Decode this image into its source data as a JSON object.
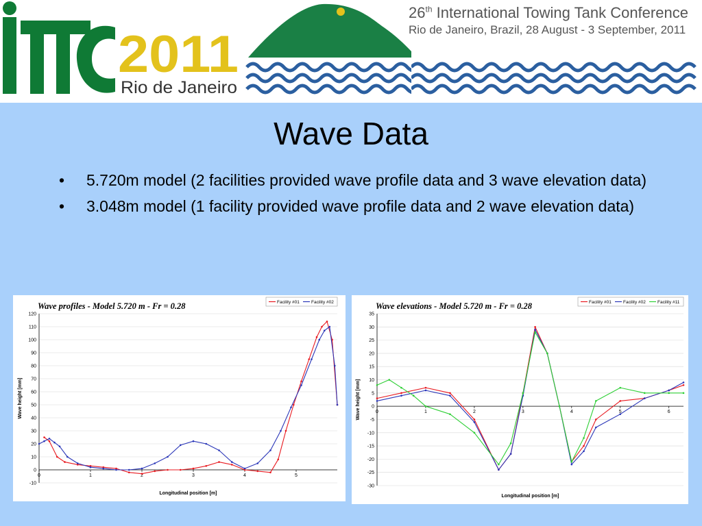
{
  "banner": {
    "logo_text": "ITTC",
    "logo_year": "2011",
    "logo_city": "Rio de Janeiro",
    "conference_ordinal": "26",
    "conference_ordinal_suffix": "th",
    "conference_name": " International Towing Tank Conference",
    "conference_details": "Rio de Janeiro, Brazil, 28 August - 3 September, 2011"
  },
  "slide": {
    "title": "Wave Data",
    "bullet_marker": "•",
    "bullets": [
      "5.720m model (2 facilities provided wave profile data and 3 wave elevation data)",
      "3.048m model (1 facility provided wave profile data and 2 wave elevation data)"
    ]
  },
  "chart_data": [
    {
      "type": "line",
      "title": "Wave profiles - Model 5.720 m - Fr = 0.28",
      "xlabel": "Longitudinal position [m]",
      "ylabel": "Wave height [mm]",
      "xlim": [
        0,
        5.8
      ],
      "ylim": [
        -10,
        120
      ],
      "x_ticks": [
        0,
        1,
        2,
        3,
        4,
        5
      ],
      "y_ticks": [
        -10,
        0,
        10,
        20,
        30,
        40,
        50,
        60,
        70,
        80,
        90,
        100,
        110,
        120
      ],
      "grid": "horizontal",
      "legend_position": "top-right",
      "series": [
        {
          "name": "Facility #01",
          "color": "#e8191f",
          "x": [
            0.1,
            0.2,
            0.35,
            0.5,
            0.75,
            1.0,
            1.25,
            1.5,
            1.75,
            2.0,
            2.25,
            2.5,
            2.75,
            3.0,
            3.25,
            3.5,
            3.75,
            4.0,
            4.25,
            4.5,
            4.65,
            4.8,
            4.95,
            5.1,
            5.25,
            5.4,
            5.5,
            5.6,
            5.7,
            5.8
          ],
          "y": [
            25,
            22,
            10,
            6,
            4,
            3,
            2,
            1,
            -2,
            -3,
            -1,
            0,
            0,
            1,
            3,
            6,
            4,
            0,
            -1,
            -2,
            8,
            30,
            50,
            68,
            85,
            102,
            110,
            114,
            100,
            50
          ]
        },
        {
          "name": "Facility #02",
          "color": "#2a36b8",
          "x": [
            0.0,
            0.1,
            0.2,
            0.3,
            0.4,
            0.55,
            0.75,
            1.0,
            1.25,
            1.5,
            1.75,
            2.0,
            2.25,
            2.5,
            2.75,
            3.0,
            3.25,
            3.5,
            3.75,
            4.0,
            4.25,
            4.5,
            4.7,
            4.9,
            5.1,
            5.3,
            5.45,
            5.55,
            5.65,
            5.75,
            5.8
          ],
          "y": [
            20,
            22,
            24,
            21,
            18,
            10,
            5,
            2,
            1,
            0,
            0,
            1,
            5,
            10,
            19,
            22,
            20,
            15,
            6,
            1,
            5,
            15,
            30,
            48,
            65,
            85,
            100,
            107,
            110,
            80,
            50
          ]
        }
      ]
    },
    {
      "type": "line",
      "title": "Wave elevations - Model 5.720 m - Fr = 0.28",
      "xlabel": "Longitudinal position [m]",
      "ylabel": "Wave height [mm]",
      "xlim": [
        0,
        6.3
      ],
      "ylim": [
        -30,
        35
      ],
      "x_ticks": [
        0,
        1,
        2,
        3,
        4,
        5,
        6
      ],
      "y_ticks": [
        -30,
        -25,
        -20,
        -15,
        -10,
        -5,
        0,
        5,
        10,
        15,
        20,
        25,
        30,
        35
      ],
      "grid": "horizontal",
      "legend_position": "top-right",
      "series": [
        {
          "name": "Facility #01",
          "color": "#e8191f",
          "x": [
            0,
            0.5,
            1.0,
            1.5,
            2.0,
            2.5,
            2.75,
            3.0,
            3.25,
            3.5,
            3.75,
            4.0,
            4.25,
            4.5,
            5.0,
            5.5,
            6.0,
            6.3
          ],
          "y": [
            3,
            5,
            7,
            5,
            -5,
            -24,
            -18,
            5,
            30,
            20,
            0,
            -21,
            -15,
            -5,
            2,
            3,
            6,
            8
          ]
        },
        {
          "name": "Facility #02",
          "color": "#2a36b8",
          "x": [
            0,
            0.5,
            1.0,
            1.5,
            2.0,
            2.5,
            2.75,
            3.0,
            3.25,
            3.5,
            3.75,
            4.0,
            4.25,
            4.5,
            5.0,
            5.5,
            6.0,
            6.3
          ],
          "y": [
            2,
            4,
            6,
            4,
            -6,
            -24,
            -18,
            4,
            29,
            20,
            0,
            -22,
            -17,
            -8,
            -3,
            3,
            6,
            9
          ]
        },
        {
          "name": "Facility #11",
          "color": "#2ecf35",
          "x": [
            0,
            0.25,
            0.5,
            0.75,
            1.0,
            1.5,
            2.0,
            2.5,
            2.75,
            3.0,
            3.25,
            3.5,
            3.75,
            4.0,
            4.25,
            4.5,
            5.0,
            5.5,
            6.0,
            6.3
          ],
          "y": [
            8,
            10,
            7,
            4,
            0,
            -3,
            -10,
            -22,
            -14,
            5,
            28,
            20,
            0,
            -21,
            -12,
            2,
            7,
            5,
            5,
            5
          ]
        }
      ]
    }
  ]
}
